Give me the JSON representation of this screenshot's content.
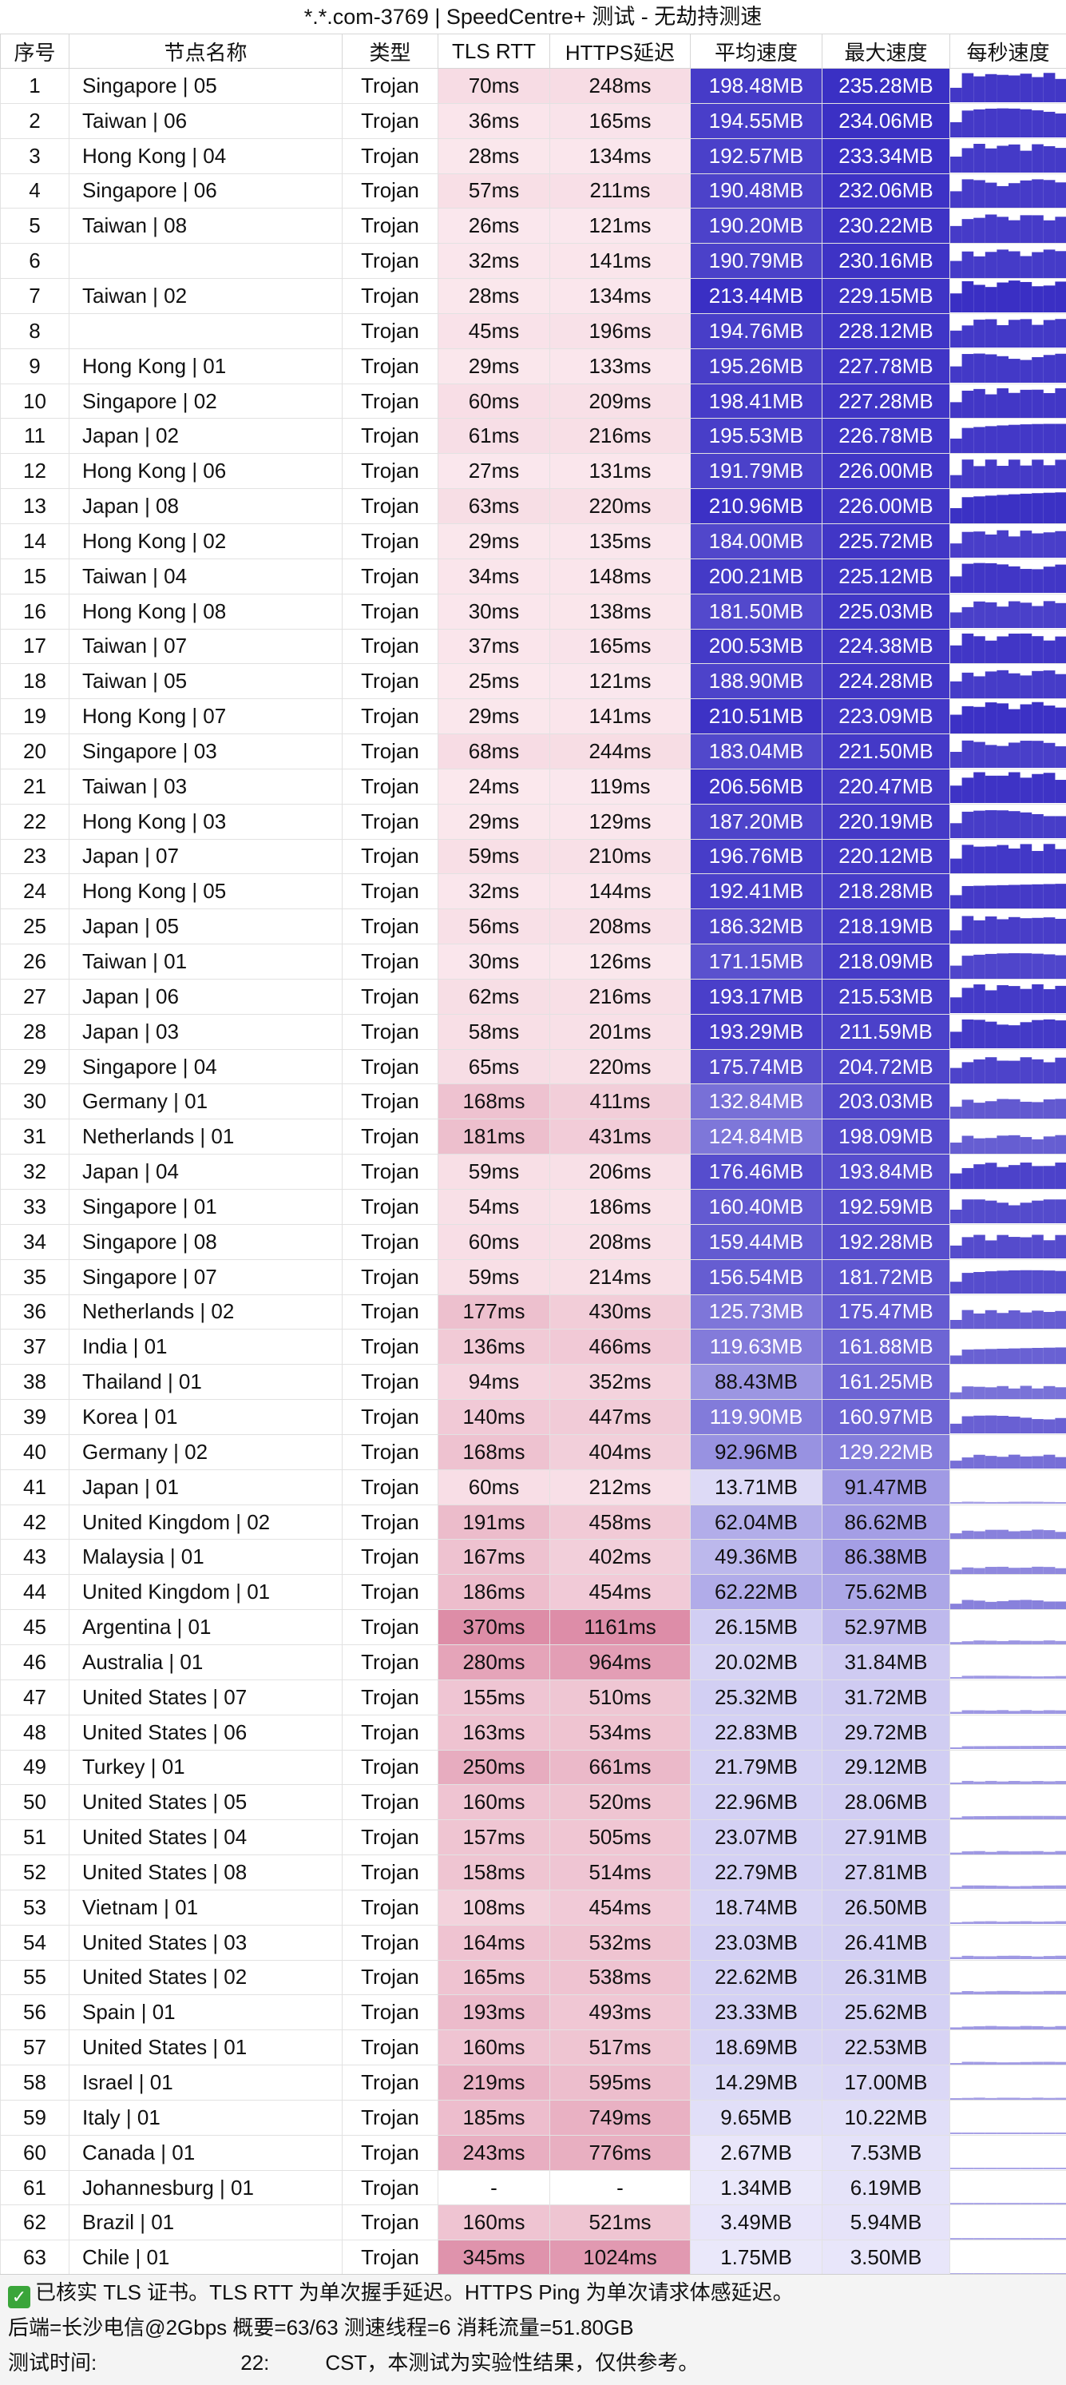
{
  "title": "*.*.com-3769 | SpeedCentre+ 测试 - 无劫持测速",
  "headers": [
    "序号",
    "节点名称",
    "类型",
    "TLS RTT",
    "HTTPS延迟",
    "平均速度",
    "最大速度",
    "每秒速度"
  ],
  "rows": [
    [
      "1",
      "Singapore | 05",
      "Trojan",
      "70ms",
      "248ms",
      "198.48MB",
      "235.28MB"
    ],
    [
      "2",
      "Taiwan | 06",
      "Trojan",
      "36ms",
      "165ms",
      "194.55MB",
      "234.06MB"
    ],
    [
      "3",
      "Hong Kong | 04",
      "Trojan",
      "28ms",
      "134ms",
      "192.57MB",
      "233.34MB"
    ],
    [
      "4",
      "Singapore | 06",
      "Trojan",
      "57ms",
      "211ms",
      "190.48MB",
      "232.06MB"
    ],
    [
      "5",
      "Taiwan | 08",
      "Trojan",
      "26ms",
      "121ms",
      "190.20MB",
      "230.22MB"
    ],
    [
      "6",
      "",
      "Trojan",
      "32ms",
      "141ms",
      "190.79MB",
      "230.16MB"
    ],
    [
      "7",
      "Taiwan | 02",
      "Trojan",
      "28ms",
      "134ms",
      "213.44MB",
      "229.15MB"
    ],
    [
      "8",
      "",
      "Trojan",
      "45ms",
      "196ms",
      "194.76MB",
      "228.12MB"
    ],
    [
      "9",
      "Hong Kong | 01",
      "Trojan",
      "29ms",
      "133ms",
      "195.26MB",
      "227.78MB"
    ],
    [
      "10",
      "Singapore | 02",
      "Trojan",
      "60ms",
      "209ms",
      "198.41MB",
      "227.28MB"
    ],
    [
      "11",
      "Japan | 02",
      "Trojan",
      "61ms",
      "216ms",
      "195.53MB",
      "226.78MB"
    ],
    [
      "12",
      "Hong Kong | 06",
      "Trojan",
      "27ms",
      "131ms",
      "191.79MB",
      "226.00MB"
    ],
    [
      "13",
      "Japan | 08",
      "Trojan",
      "63ms",
      "220ms",
      "210.96MB",
      "226.00MB"
    ],
    [
      "14",
      "Hong Kong | 02",
      "Trojan",
      "29ms",
      "135ms",
      "184.00MB",
      "225.72MB"
    ],
    [
      "15",
      "Taiwan | 04",
      "Trojan",
      "34ms",
      "148ms",
      "200.21MB",
      "225.12MB"
    ],
    [
      "16",
      "Hong Kong | 08",
      "Trojan",
      "30ms",
      "138ms",
      "181.50MB",
      "225.03MB"
    ],
    [
      "17",
      "Taiwan | 07",
      "Trojan",
      "37ms",
      "165ms",
      "200.53MB",
      "224.38MB"
    ],
    [
      "18",
      "Taiwan | 05",
      "Trojan",
      "25ms",
      "121ms",
      "188.90MB",
      "224.28MB"
    ],
    [
      "19",
      "Hong Kong | 07",
      "Trojan",
      "29ms",
      "141ms",
      "210.51MB",
      "223.09MB"
    ],
    [
      "20",
      "Singapore | 03",
      "Trojan",
      "68ms",
      "244ms",
      "183.04MB",
      "221.50MB"
    ],
    [
      "21",
      "Taiwan | 03",
      "Trojan",
      "24ms",
      "119ms",
      "206.56MB",
      "220.47MB"
    ],
    [
      "22",
      "Hong Kong | 03",
      "Trojan",
      "29ms",
      "129ms",
      "187.20MB",
      "220.19MB"
    ],
    [
      "23",
      "Japan | 07",
      "Trojan",
      "59ms",
      "210ms",
      "196.76MB",
      "220.12MB"
    ],
    [
      "24",
      "Hong Kong | 05",
      "Trojan",
      "32ms",
      "144ms",
      "192.41MB",
      "218.28MB"
    ],
    [
      "25",
      "Japan | 05",
      "Trojan",
      "56ms",
      "208ms",
      "186.32MB",
      "218.19MB"
    ],
    [
      "26",
      "Taiwan | 01",
      "Trojan",
      "30ms",
      "126ms",
      "171.15MB",
      "218.09MB"
    ],
    [
      "27",
      "Japan | 06",
      "Trojan",
      "62ms",
      "216ms",
      "193.17MB",
      "215.53MB"
    ],
    [
      "28",
      "Japan | 03",
      "Trojan",
      "58ms",
      "201ms",
      "193.29MB",
      "211.59MB"
    ],
    [
      "29",
      "Singapore | 04",
      "Trojan",
      "65ms",
      "220ms",
      "175.74MB",
      "204.72MB"
    ],
    [
      "30",
      "Germany | 01",
      "Trojan",
      "168ms",
      "411ms",
      "132.84MB",
      "203.03MB"
    ],
    [
      "31",
      "Netherlands | 01",
      "Trojan",
      "181ms",
      "431ms",
      "124.84MB",
      "198.09MB"
    ],
    [
      "32",
      "Japan | 04",
      "Trojan",
      "59ms",
      "206ms",
      "176.46MB",
      "193.84MB"
    ],
    [
      "33",
      "Singapore | 01",
      "Trojan",
      "54ms",
      "186ms",
      "160.40MB",
      "192.59MB"
    ],
    [
      "34",
      "Singapore | 08",
      "Trojan",
      "60ms",
      "208ms",
      "159.44MB",
      "192.28MB"
    ],
    [
      "35",
      "Singapore | 07",
      "Trojan",
      "59ms",
      "214ms",
      "156.54MB",
      "181.72MB"
    ],
    [
      "36",
      "Netherlands | 02",
      "Trojan",
      "177ms",
      "430ms",
      "125.73MB",
      "175.47MB"
    ],
    [
      "37",
      "India | 01",
      "Trojan",
      "136ms",
      "466ms",
      "119.63MB",
      "161.88MB"
    ],
    [
      "38",
      "Thailand | 01",
      "Trojan",
      "94ms",
      "352ms",
      "88.43MB",
      "161.25MB"
    ],
    [
      "39",
      "Korea | 01",
      "Trojan",
      "140ms",
      "447ms",
      "119.90MB",
      "160.97MB"
    ],
    [
      "40",
      "Germany | 02",
      "Trojan",
      "168ms",
      "404ms",
      "92.96MB",
      "129.22MB"
    ],
    [
      "41",
      "Japan | 01",
      "Trojan",
      "60ms",
      "212ms",
      "13.71MB",
      "91.47MB"
    ],
    [
      "42",
      "United Kingdom | 02",
      "Trojan",
      "191ms",
      "458ms",
      "62.04MB",
      "86.62MB"
    ],
    [
      "43",
      "Malaysia | 01",
      "Trojan",
      "167ms",
      "402ms",
      "49.36MB",
      "86.38MB"
    ],
    [
      "44",
      "United Kingdom | 01",
      "Trojan",
      "186ms",
      "454ms",
      "62.22MB",
      "75.62MB"
    ],
    [
      "45",
      "Argentina | 01",
      "Trojan",
      "370ms",
      "1161ms",
      "26.15MB",
      "52.97MB"
    ],
    [
      "46",
      "Australia | 01",
      "Trojan",
      "280ms",
      "964ms",
      "20.02MB",
      "31.84MB"
    ],
    [
      "47",
      "United States | 07",
      "Trojan",
      "155ms",
      "510ms",
      "25.32MB",
      "31.72MB"
    ],
    [
      "48",
      "United States | 06",
      "Trojan",
      "163ms",
      "534ms",
      "22.83MB",
      "29.72MB"
    ],
    [
      "49",
      "Turkey | 01",
      "Trojan",
      "250ms",
      "661ms",
      "21.79MB",
      "29.12MB"
    ],
    [
      "50",
      "United States | 05",
      "Trojan",
      "160ms",
      "520ms",
      "22.96MB",
      "28.06MB"
    ],
    [
      "51",
      "United States | 04",
      "Trojan",
      "157ms",
      "505ms",
      "23.07MB",
      "27.91MB"
    ],
    [
      "52",
      "United States | 08",
      "Trojan",
      "158ms",
      "514ms",
      "22.79MB",
      "27.81MB"
    ],
    [
      "53",
      "Vietnam | 01",
      "Trojan",
      "108ms",
      "454ms",
      "18.74MB",
      "26.50MB"
    ],
    [
      "54",
      "United States | 03",
      "Trojan",
      "164ms",
      "532ms",
      "23.03MB",
      "26.41MB"
    ],
    [
      "55",
      "United States | 02",
      "Trojan",
      "165ms",
      "538ms",
      "22.62MB",
      "26.31MB"
    ],
    [
      "56",
      "Spain | 01",
      "Trojan",
      "193ms",
      "493ms",
      "23.33MB",
      "25.62MB"
    ],
    [
      "57",
      "United States | 01",
      "Trojan",
      "160ms",
      "517ms",
      "18.69MB",
      "22.53MB"
    ],
    [
      "58",
      "Israel | 01",
      "Trojan",
      "219ms",
      "595ms",
      "14.29MB",
      "17.00MB"
    ],
    [
      "59",
      "Italy | 01",
      "Trojan",
      "185ms",
      "749ms",
      "9.65MB",
      "10.22MB"
    ],
    [
      "60",
      "Canada | 01",
      "Trojan",
      "243ms",
      "776ms",
      "2.67MB",
      "7.53MB"
    ],
    [
      "61",
      "Johannesburg | 01",
      "Trojan",
      "-",
      "-",
      "1.34MB",
      "6.19MB"
    ],
    [
      "62",
      "Brazil | 01",
      "Trojan",
      "160ms",
      "521ms",
      "3.49MB",
      "5.94MB"
    ],
    [
      "63",
      "Chile | 01",
      "Trojan",
      "345ms",
      "1024ms",
      "1.75MB",
      "3.50MB"
    ]
  ],
  "footer": {
    "line1": "已核实 TLS 证书。TLS RTT 为单次握手延迟。HTTPS Ping 为单次请求体感延迟。",
    "line2": "后端=长沙电信@2Gbps 概要=63/63 测速线程=6 消耗流量=51.80GB",
    "line3_prefix": "测试时间:",
    "line3_mid": "22:",
    "line3_suffix": "CST，本测试为实验性结果，仅供参考。"
  },
  "colors": {
    "speed_max": "#3a2fc4",
    "speed_min": "#eceafb",
    "latency_min": "#fbe9ee",
    "latency_max": "#dc8aa5",
    "footer_bg": "#f4f4f4",
    "check_green": "#3aa53a"
  }
}
